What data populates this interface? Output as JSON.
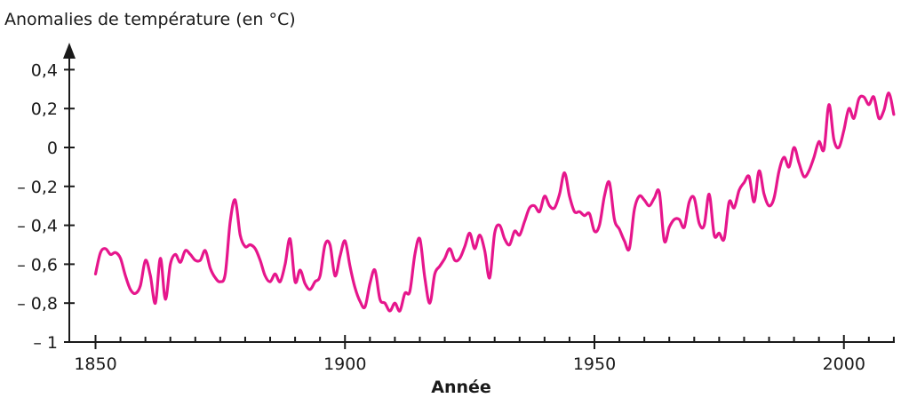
{
  "chart_data": {
    "type": "line",
    "ylabel": "Anomalies de température (en °C)",
    "xlabel": "Année",
    "xlim": [
      1850,
      2010
    ],
    "ylim": [
      -1,
      0.4
    ],
    "x_ticks": [
      "1850",
      "1900",
      "1950",
      "2000"
    ],
    "y_ticks": [
      "0,4",
      "0,2",
      "0",
      "– 0,2",
      "– 0,4",
      "– 0,6",
      "– 0,8",
      "– 1"
    ],
    "y_tick_values": [
      0.4,
      0.2,
      0,
      -0.2,
      -0.4,
      -0.6,
      -0.8,
      -1
    ],
    "x_minor_tick_step": 5,
    "grid": false,
    "color": "#e6168c",
    "series": [
      {
        "x": [
          1850,
          1851,
          1852,
          1853,
          1854,
          1855,
          1856,
          1857,
          1858,
          1859,
          1860,
          1861,
          1862,
          1863,
          1864,
          1865,
          1866,
          1867,
          1868,
          1869,
          1870,
          1871,
          1872,
          1873,
          1874,
          1875,
          1876,
          1877,
          1878,
          1879,
          1880,
          1881,
          1882,
          1883,
          1884,
          1885,
          1886,
          1887,
          1888,
          1889,
          1890,
          1891,
          1892,
          1893,
          1894,
          1895,
          1896,
          1897,
          1898,
          1899,
          1900,
          1901,
          1902,
          1903,
          1904,
          1905,
          1906,
          1907,
          1908,
          1909,
          1910,
          1911,
          1912,
          1913,
          1914,
          1915,
          1916,
          1917,
          1918,
          1919,
          1920,
          1921,
          1922,
          1923,
          1924,
          1925,
          1926,
          1927,
          1928,
          1929,
          1930,
          1931,
          1932,
          1933,
          1934,
          1935,
          1936,
          1937,
          1938,
          1939,
          1940,
          1941,
          1942,
          1943,
          1944,
          1945,
          1946,
          1947,
          1948,
          1949,
          1950,
          1951,
          1952,
          1953,
          1954,
          1955,
          1956,
          1957,
          1958,
          1959,
          1960,
          1961,
          1962,
          1963,
          1964,
          1965,
          1966,
          1967,
          1968,
          1969,
          1970,
          1971,
          1972,
          1973,
          1974,
          1975,
          1976,
          1977,
          1978,
          1979,
          1980,
          1981,
          1982,
          1983,
          1984,
          1985,
          1986,
          1987,
          1988,
          1989,
          1990,
          1991,
          1992,
          1993,
          1994,
          1995,
          1996,
          1997,
          1998,
          1999,
          2000,
          2001,
          2002,
          2003,
          2004,
          2005,
          2006,
          2007,
          2008,
          2009,
          2010
        ],
        "values": [
          -0.65,
          -0.54,
          -0.52,
          -0.55,
          -0.54,
          -0.57,
          -0.66,
          -0.73,
          -0.75,
          -0.71,
          -0.58,
          -0.66,
          -0.8,
          -0.57,
          -0.78,
          -0.6,
          -0.55,
          -0.59,
          -0.53,
          -0.55,
          -0.58,
          -0.58,
          -0.53,
          -0.62,
          -0.67,
          -0.69,
          -0.65,
          -0.38,
          -0.27,
          -0.45,
          -0.51,
          -0.5,
          -0.52,
          -0.58,
          -0.66,
          -0.69,
          -0.65,
          -0.69,
          -0.6,
          -0.47,
          -0.69,
          -0.63,
          -0.7,
          -0.73,
          -0.69,
          -0.66,
          -0.5,
          -0.5,
          -0.66,
          -0.56,
          -0.48,
          -0.61,
          -0.72,
          -0.79,
          -0.82,
          -0.7,
          -0.63,
          -0.78,
          -0.8,
          -0.84,
          -0.8,
          -0.84,
          -0.75,
          -0.74,
          -0.55,
          -0.47,
          -0.67,
          -0.8,
          -0.65,
          -0.61,
          -0.57,
          -0.52,
          -0.58,
          -0.57,
          -0.51,
          -0.44,
          -0.52,
          -0.45,
          -0.53,
          -0.67,
          -0.44,
          -0.4,
          -0.47,
          -0.5,
          -0.43,
          -0.45,
          -0.38,
          -0.31,
          -0.3,
          -0.33,
          -0.25,
          -0.3,
          -0.31,
          -0.24,
          -0.13,
          -0.25,
          -0.33,
          -0.33,
          -0.35,
          -0.34,
          -0.43,
          -0.4,
          -0.25,
          -0.18,
          -0.37,
          -0.42,
          -0.48,
          -0.52,
          -0.32,
          -0.25,
          -0.27,
          -0.3,
          -0.26,
          -0.23,
          -0.48,
          -0.41,
          -0.37,
          -0.37,
          -0.41,
          -0.28,
          -0.26,
          -0.39,
          -0.4,
          -0.24,
          -0.45,
          -0.44,
          -0.47,
          -0.28,
          -0.31,
          -0.22,
          -0.18,
          -0.15,
          -0.28,
          -0.12,
          -0.24,
          -0.3,
          -0.26,
          -0.12,
          -0.05,
          -0.1,
          0.0,
          -0.08,
          -0.15,
          -0.12,
          -0.05,
          0.03,
          -0.01,
          0.22,
          0.04,
          0.0,
          0.09,
          0.2,
          0.15,
          0.25,
          0.26,
          0.22,
          0.26,
          0.15,
          0.19,
          0.28,
          0.17
        ],
        "color": "#e6168c"
      }
    ]
  }
}
